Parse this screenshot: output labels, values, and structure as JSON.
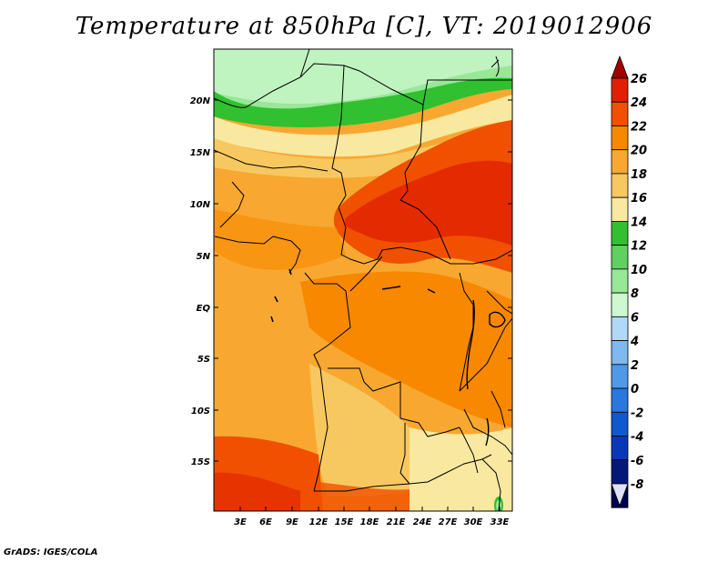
{
  "title": "Temperature at 850hPa [C], VT: 2019012906",
  "footer": "GrADS: IGES/COLA",
  "axes": {
    "lat_labels": [
      "20N",
      "15N",
      "10N",
      "5N",
      "EQ",
      "5S",
      "10S",
      "15S"
    ],
    "lon_labels": [
      "3E",
      "6E",
      "9E",
      "12E",
      "15E",
      "18E",
      "21E",
      "24E",
      "27E",
      "30E",
      "33E"
    ]
  },
  "colorbar": {
    "levels": [
      "26",
      "24",
      "22",
      "20",
      "18",
      "16",
      "14",
      "12",
      "10",
      "8",
      "6",
      "4",
      "2",
      "0",
      "-2",
      "-4",
      "-6",
      "-8"
    ],
    "colors": [
      "#a00000",
      "#e02000",
      "#f05000",
      "#f88800",
      "#f8a830",
      "#f8c860",
      "#f8e8a0",
      "#30c030",
      "#60d060",
      "#98e898",
      "#d0f8d0",
      "#b0d8f8",
      "#80b8f0",
      "#5098e8",
      "#2878e0",
      "#1058d0",
      "#0838b8",
      "#041878",
      "#000050",
      "#e0e0f8"
    ]
  },
  "chart_data": {
    "type": "heatmap",
    "title": "Temperature at 850hPa [C], VT: 2019012906",
    "variable": "Temperature at 850hPa",
    "units": "C",
    "valid_time": "2019012906",
    "lon_range": [
      0,
      34
    ],
    "lat_range": [
      -20,
      24
    ],
    "lon_ticks": [
      "3E",
      "6E",
      "9E",
      "12E",
      "15E",
      "18E",
      "21E",
      "24E",
      "27E",
      "30E",
      "33E"
    ],
    "lat_ticks": [
      "20N",
      "15N",
      "10N",
      "5N",
      "EQ",
      "5S",
      "10S",
      "15S"
    ],
    "color_levels": [
      -8,
      -6,
      -4,
      -2,
      0,
      2,
      4,
      6,
      8,
      10,
      12,
      14,
      16,
      18,
      20,
      22,
      24,
      26
    ]
  }
}
